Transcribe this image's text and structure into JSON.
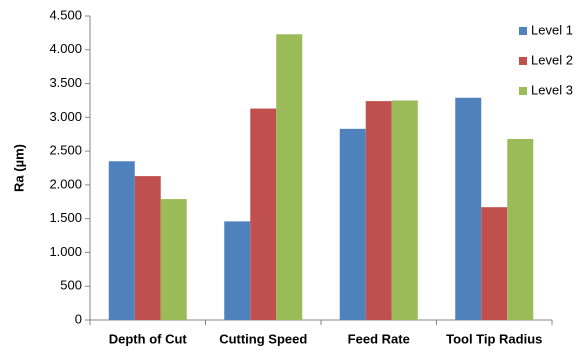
{
  "chart_data": {
    "type": "bar",
    "y_label": "Ra (µm)",
    "categories": [
      "Depth of Cut",
      "Cutting Speed",
      "Feed Rate",
      "Tool Tip Radius"
    ],
    "series": [
      {
        "name": "Level 1",
        "color": "#4f81bd",
        "values": [
          2350,
          1460,
          2830,
          3290
        ]
      },
      {
        "name": "Level 2",
        "color": "#c0504d",
        "values": [
          2130,
          3130,
          3240,
          1670
        ]
      },
      {
        "name": "Level 3",
        "color": "#9bbb59",
        "values": [
          1790,
          4230,
          3250,
          2680
        ]
      }
    ],
    "ylim": [
      0,
      4500
    ],
    "yticks": [
      0,
      500,
      {
        "value": 1000,
        "label": "1.000"
      },
      {
        "value": 1500,
        "label": "1.500"
      },
      {
        "value": 2000,
        "label": "2.000"
      },
      {
        "value": 2500,
        "label": "2.500"
      },
      {
        "value": 3000,
        "label": "3.000"
      },
      {
        "value": 3500,
        "label": "3.500"
      },
      {
        "value": 4000,
        "label": "4.000"
      },
      {
        "value": 4500,
        "label": "4.500"
      }
    ],
    "grid": false,
    "legend": "right"
  }
}
